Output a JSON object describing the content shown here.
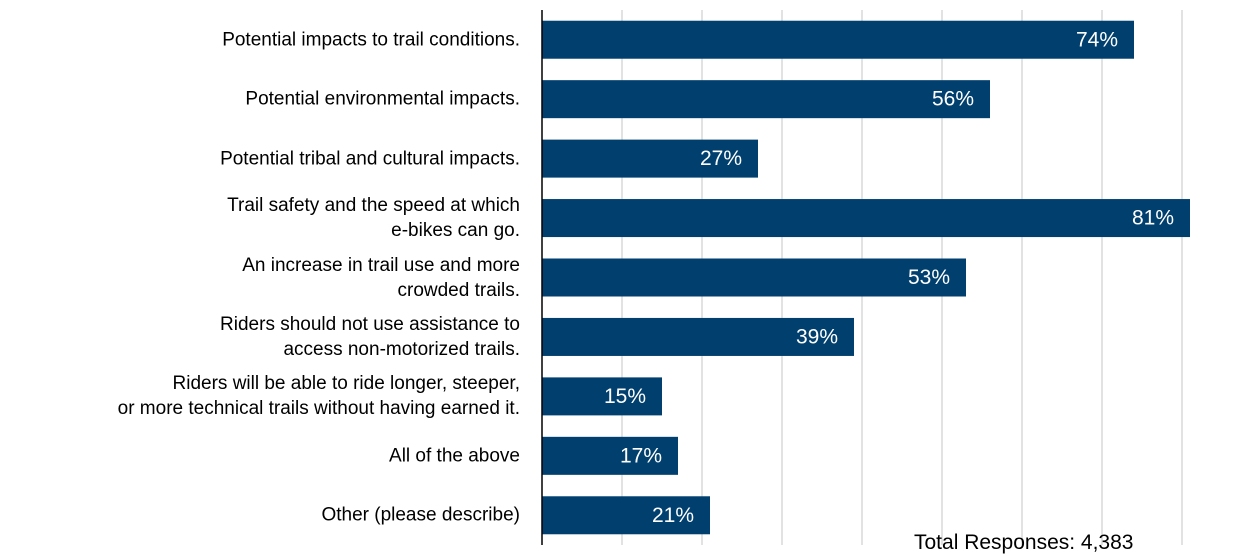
{
  "chart_data": {
    "type": "bar",
    "orientation": "horizontal",
    "categories": [
      "Potential impacts to trail conditions.",
      "Potential environmental impacts.",
      "Potential tribal and cultural impacts.",
      "Trail safety and the speed at which\ne-bikes can go.",
      "An increase in trail use and more\ncrowded trails.",
      "Riders should not use assistance to\naccess non-motorized trails.",
      "Riders will be able to ride longer, steeper,\nor more technical trails without having earned it.",
      "All of the above",
      "Other (please describe)"
    ],
    "values": [
      74,
      56,
      27,
      81,
      53,
      39,
      15,
      17,
      21
    ],
    "value_labels": [
      "74%",
      "56%",
      "27%",
      "81%",
      "53%",
      "39%",
      "15%",
      "17%",
      "21%"
    ],
    "color": "#003f6e",
    "xlim": [
      0,
      90
    ],
    "xticks": [
      0,
      10,
      20,
      30,
      40,
      50,
      60,
      70,
      80
    ],
    "grid": true,
    "annotation": "Total Responses: 4,383"
  }
}
